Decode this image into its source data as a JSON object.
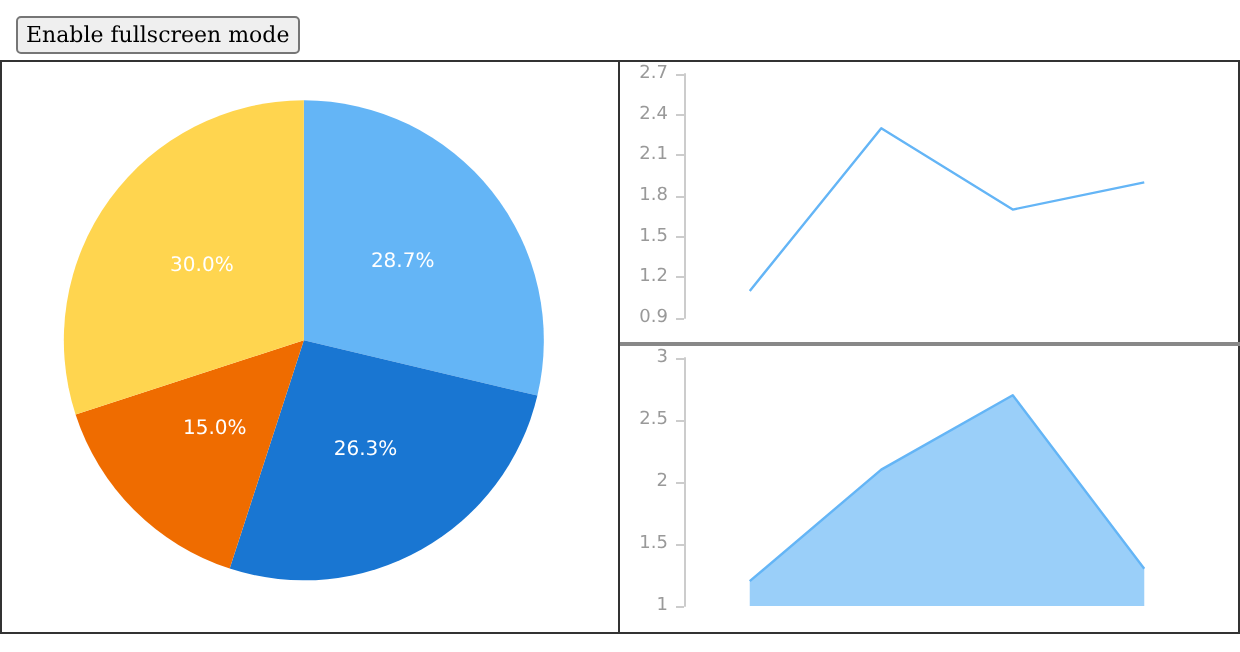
{
  "chart_data": [
    {
      "type": "pie",
      "categories": [
        null,
        null,
        null,
        null
      ],
      "values": [
        28.7,
        26.3,
        15.0,
        30.0
      ],
      "colors": [
        "#64b5f6",
        "#1976d2",
        "#ef6c00",
        "#ffd54f"
      ],
      "value_labels": [
        "28.7%",
        "26.3%",
        "15.0%",
        "30.0%"
      ],
      "annotations": [
        "Enable fullscreen mode"
      ]
    },
    {
      "type": "line",
      "categories": [
        null,
        null,
        null,
        null
      ],
      "series": [
        {
          "color": "#64b5f6",
          "values": [
            1.1,
            2.3,
            1.7,
            1.9
          ]
        }
      ],
      "ylim": [
        0.9,
        2.7
      ],
      "yticks": [
        0.9,
        1.2,
        1.5,
        1.8,
        2.1,
        2.4,
        2.7
      ],
      "grid": false,
      "marker": "none",
      "tick_labels": "y"
    },
    {
      "type": "area",
      "categories": [
        null,
        null,
        null,
        null
      ],
      "series": [
        {
          "color": "#64b5f6",
          "values": [
            1.2,
            2.1,
            2.7,
            1.3
          ]
        }
      ],
      "ylim": [
        1,
        3
      ],
      "yticks": [
        1,
        1.5,
        2,
        2.5,
        3
      ],
      "grid": false,
      "marker": "none",
      "tick_labels": "y"
    }
  ]
}
